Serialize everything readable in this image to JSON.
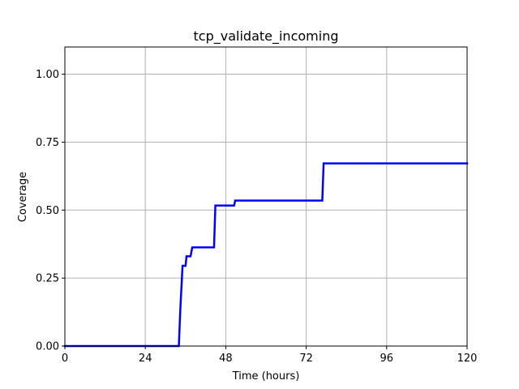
{
  "chart_data": {
    "type": "line",
    "title": "tcp_validate_incoming",
    "xlabel": "Time (hours)",
    "ylabel": "Coverage",
    "xlim": [
      0,
      120
    ],
    "ylim": [
      0,
      1.1
    ],
    "xticks": [
      0,
      24,
      48,
      72,
      96,
      120
    ],
    "yticks": [
      0.0,
      0.25,
      0.5,
      0.75,
      1.0
    ],
    "xtick_labels": [
      "0",
      "24",
      "48",
      "72",
      "96",
      "120"
    ],
    "ytick_labels": [
      "0.00",
      "0.25",
      "0.50",
      "0.75",
      "1.00"
    ],
    "grid": true,
    "series": [
      {
        "color": "#0000ff",
        "x": [
          0,
          34.0,
          34.2,
          34.5,
          34.8,
          35.1,
          36.0,
          36.3,
          37.5,
          38.0,
          44.5,
          44.9,
          50.5,
          50.8,
          76.8,
          77.2,
          120
        ],
        "y": [
          0.0,
          0.0,
          0.06,
          0.15,
          0.22,
          0.295,
          0.295,
          0.33,
          0.33,
          0.363,
          0.363,
          0.517,
          0.517,
          0.535,
          0.535,
          0.672,
          0.672
        ]
      }
    ]
  }
}
